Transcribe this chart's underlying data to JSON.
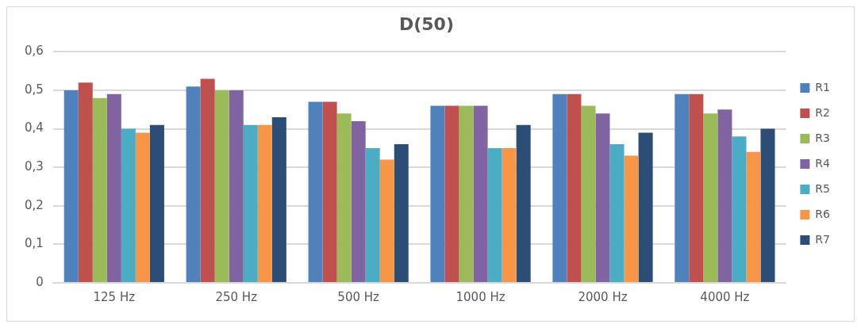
{
  "chart_data": {
    "type": "bar",
    "title": "D(50)",
    "categories": [
      "125 Hz",
      "250 Hz",
      "500 Hz",
      "1000 Hz",
      "2000 Hz",
      "4000 Hz"
    ],
    "series": [
      {
        "name": "R1",
        "color": "#4f81bd",
        "values": [
          0.5,
          0.51,
          0.47,
          0.46,
          0.49,
          0.49
        ]
      },
      {
        "name": "R2",
        "color": "#c0504d",
        "values": [
          0.52,
          0.53,
          0.47,
          0.46,
          0.49,
          0.49
        ]
      },
      {
        "name": "R3",
        "color": "#9bbb59",
        "values": [
          0.48,
          0.5,
          0.44,
          0.46,
          0.46,
          0.44
        ]
      },
      {
        "name": "R4",
        "color": "#8064a2",
        "values": [
          0.49,
          0.5,
          0.42,
          0.46,
          0.44,
          0.45
        ]
      },
      {
        "name": "R5",
        "color": "#4bacc6",
        "values": [
          0.4,
          0.41,
          0.35,
          0.35,
          0.36,
          0.38
        ]
      },
      {
        "name": "R6",
        "color": "#f79646",
        "values": [
          0.39,
          0.41,
          0.32,
          0.35,
          0.33,
          0.34
        ]
      },
      {
        "name": "R7",
        "color": "#2c4d75",
        "values": [
          0.41,
          0.43,
          0.36,
          0.41,
          0.39,
          0.4
        ]
      }
    ],
    "ylim": [
      0,
      0.6
    ],
    "yticks": [
      {
        "value": 0,
        "label": "0"
      },
      {
        "value": 0.1,
        "label": "0,1"
      },
      {
        "value": 0.2,
        "label": "0,2"
      },
      {
        "value": 0.3,
        "label": "0,3"
      },
      {
        "value": 0.4,
        "label": "0,4"
      },
      {
        "value": 0.5,
        "label": "0,5"
      },
      {
        "value": 0.6,
        "label": "0,6"
      }
    ],
    "grid": "y",
    "legend": "right"
  }
}
